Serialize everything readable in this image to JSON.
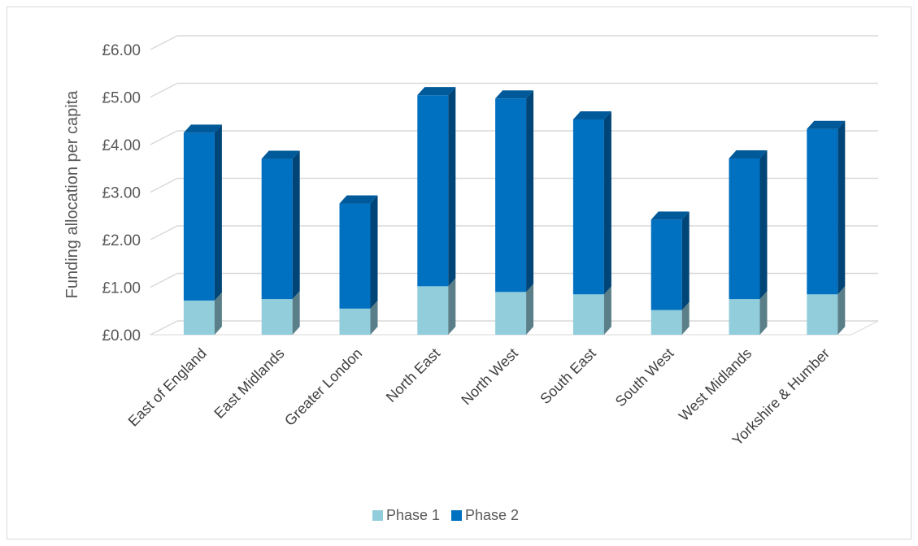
{
  "chart_data": {
    "type": "bar",
    "stacked": true,
    "style": "3d-column",
    "title": "",
    "xlabel": "",
    "ylabel": "Funding allocation per capita",
    "ylim": [
      0,
      6
    ],
    "yticks": [
      "£0.00",
      "£1.00",
      "£2.00",
      "£3.00",
      "£4.00",
      "£5.00",
      "£6.00"
    ],
    "grid": true,
    "legend_position": "bottom",
    "categories": [
      "East of England",
      "East Midlands",
      "Greater London",
      "North East",
      "North West",
      "South East",
      "South West",
      "West Midlands",
      "Yorkshire & Humber"
    ],
    "series": [
      {
        "name": "Phase 1",
        "color": "#92cddc",
        "values": [
          0.72,
          0.75,
          0.55,
          1.02,
          0.9,
          0.85,
          0.52,
          0.75,
          0.85
        ]
      },
      {
        "name": "Phase 2",
        "color": "#0070c0",
        "values": [
          3.53,
          2.95,
          2.21,
          4.02,
          4.07,
          3.68,
          1.9,
          2.96,
          3.48
        ]
      }
    ]
  }
}
